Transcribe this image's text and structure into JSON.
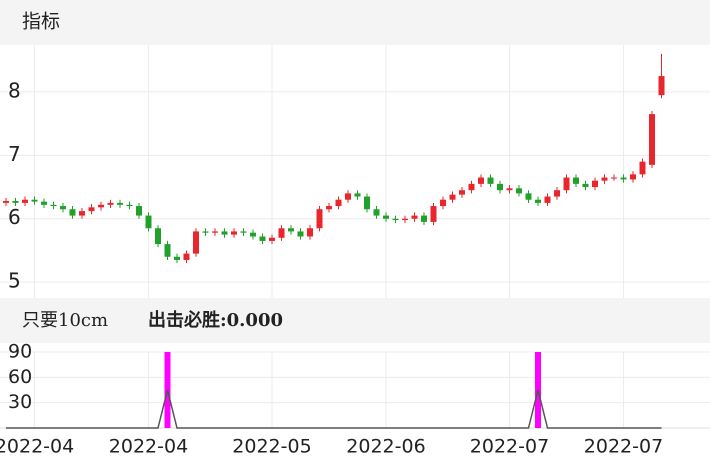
{
  "chart_data": [
    {
      "type": "candlestick",
      "panel_title": "指标",
      "open": [
        6.25,
        6.28,
        6.25,
        6.3,
        6.27,
        6.22,
        6.2,
        6.15,
        6.05,
        6.12,
        6.18,
        6.22,
        6.25,
        6.22,
        6.2,
        6.05,
        5.85,
        5.6,
        5.4,
        5.35,
        5.45,
        5.8,
        5.78,
        5.8,
        5.75,
        5.8,
        5.78,
        5.72,
        5.65,
        5.7,
        5.85,
        5.8,
        5.72,
        5.85,
        6.15,
        6.2,
        6.3,
        6.4,
        6.35,
        6.15,
        6.05,
        6.0,
        5.98,
        6.0,
        6.05,
        5.95,
        6.2,
        6.3,
        6.38,
        6.45,
        6.55,
        6.65,
        6.55,
        6.45,
        6.48,
        6.4,
        6.3,
        6.25,
        6.35,
        6.45,
        6.65,
        6.55,
        6.5,
        6.6,
        6.65,
        6.65,
        6.62,
        6.7,
        6.85,
        7.95
      ],
      "close": [
        6.28,
        6.25,
        6.3,
        6.27,
        6.22,
        6.2,
        6.15,
        6.05,
        6.12,
        6.18,
        6.22,
        6.25,
        6.22,
        6.2,
        6.05,
        5.85,
        5.6,
        5.4,
        5.35,
        5.45,
        5.8,
        5.78,
        5.8,
        5.75,
        5.8,
        5.78,
        5.72,
        5.65,
        5.7,
        5.85,
        5.8,
        5.72,
        5.85,
        6.15,
        6.2,
        6.3,
        6.4,
        6.35,
        6.15,
        6.05,
        6.0,
        5.98,
        6.0,
        6.05,
        5.95,
        6.2,
        6.3,
        6.38,
        6.45,
        6.55,
        6.65,
        6.55,
        6.45,
        6.48,
        6.4,
        6.3,
        6.25,
        6.35,
        6.45,
        6.65,
        6.55,
        6.5,
        6.6,
        6.65,
        6.65,
        6.62,
        6.7,
        6.9,
        7.65,
        8.25
      ],
      "high": [
        6.33,
        6.33,
        6.35,
        6.35,
        6.32,
        6.27,
        6.25,
        6.2,
        6.17,
        6.23,
        6.27,
        6.3,
        6.3,
        6.27,
        6.25,
        6.1,
        5.9,
        5.65,
        5.45,
        5.5,
        5.85,
        5.85,
        5.85,
        5.85,
        5.85,
        5.85,
        5.83,
        5.77,
        5.75,
        5.9,
        5.9,
        5.85,
        5.9,
        6.2,
        6.25,
        6.35,
        6.45,
        6.45,
        6.4,
        6.2,
        6.1,
        6.05,
        6.05,
        6.1,
        6.1,
        6.25,
        6.35,
        6.43,
        6.5,
        6.6,
        6.7,
        6.7,
        6.6,
        6.53,
        6.53,
        6.45,
        6.35,
        6.4,
        6.5,
        6.7,
        6.7,
        6.6,
        6.65,
        6.7,
        6.7,
        6.7,
        6.75,
        6.95,
        7.7,
        8.6
      ],
      "low": [
        6.2,
        6.2,
        6.2,
        6.22,
        6.17,
        6.15,
        6.1,
        6.0,
        6.0,
        6.07,
        6.13,
        6.17,
        6.17,
        6.15,
        6.0,
        5.8,
        5.55,
        5.35,
        5.3,
        5.3,
        5.4,
        5.73,
        5.73,
        5.7,
        5.7,
        5.73,
        5.67,
        5.6,
        5.6,
        5.65,
        5.75,
        5.67,
        5.67,
        5.8,
        6.1,
        6.15,
        6.25,
        6.3,
        6.1,
        6.0,
        5.95,
        5.93,
        5.93,
        5.95,
        5.9,
        5.9,
        6.15,
        6.25,
        6.33,
        6.4,
        6.5,
        6.5,
        6.4,
        6.4,
        6.35,
        6.25,
        6.2,
        6.2,
        6.3,
        6.4,
        6.5,
        6.45,
        6.45,
        6.55,
        6.6,
        6.57,
        6.57,
        6.65,
        6.8,
        7.9
      ],
      "up_color": "#e8262c",
      "down_color": "#21a12a",
      "ylim": [
        4.75,
        8.74
      ],
      "yticks": [
        5,
        6,
        7,
        8
      ],
      "grid": true
    },
    {
      "type": "indicator",
      "label": "只要10cm",
      "value_text": "出击必胜:0.000",
      "series": [
        {
          "values": [
            0,
            0,
            0,
            0,
            0,
            0,
            0,
            0,
            0,
            0,
            0,
            0,
            0,
            0,
            0,
            0,
            0,
            90,
            0,
            0,
            0,
            0,
            0,
            0,
            0,
            0,
            0,
            0,
            0,
            0,
            0,
            0,
            0,
            0,
            0,
            0,
            0,
            0,
            0,
            0,
            0,
            0,
            0,
            0,
            0,
            0,
            0,
            0,
            0,
            0,
            0,
            0,
            0,
            0,
            0,
            0,
            90,
            0,
            0,
            0,
            0,
            0,
            0,
            0,
            0,
            0,
            0,
            0,
            0,
            0
          ],
          "color": "#ff00ff",
          "style": "bar"
        },
        {
          "values": [
            0,
            0,
            0,
            0,
            0,
            0,
            0,
            0,
            0,
            0,
            0,
            0,
            0,
            0,
            0,
            0,
            0,
            45,
            0,
            0,
            0,
            0,
            0,
            0,
            0,
            0,
            0,
            0,
            0,
            0,
            0,
            0,
            0,
            0,
            0,
            0,
            0,
            0,
            0,
            0,
            0,
            0,
            0,
            0,
            0,
            0,
            0,
            0,
            0,
            0,
            0,
            0,
            0,
            0,
            0,
            0,
            45,
            0,
            0,
            0,
            0,
            0,
            0,
            0,
            0,
            0,
            0,
            0,
            0,
            0
          ],
          "color": "#555555",
          "style": "line"
        }
      ],
      "ylim": [
        0,
        90
      ],
      "yticks": [
        30,
        60,
        90
      ],
      "xticks": [
        {
          "value": 3,
          "label": "2022-04"
        },
        {
          "value": 15,
          "label": "2022-04"
        },
        {
          "value": 28,
          "label": "2022-05"
        },
        {
          "value": 40,
          "label": "2022-06"
        },
        {
          "value": 53,
          "label": "2022-07"
        },
        {
          "value": 65,
          "label": "2022-07"
        }
      ]
    }
  ]
}
